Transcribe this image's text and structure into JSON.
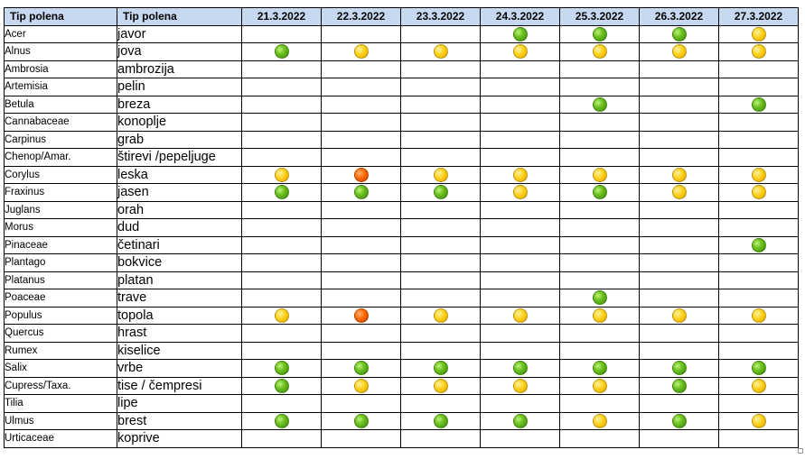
{
  "header": {
    "col1": "Tip polena",
    "col2": "Tip polena",
    "dates": [
      "21.3.2022",
      "22.3.2022",
      "23.3.2022",
      "24.3.2022",
      "25.3.2022",
      "26.3.2022",
      "27.3.2022"
    ]
  },
  "colors": {
    "green": "#6cc11f",
    "yellow": "#ffd11a",
    "orange": "#ff6a00"
  },
  "rows": [
    {
      "latin": "Acer",
      "local": "javor",
      "levels": [
        "",
        "",
        "",
        "green",
        "green",
        "green",
        "yellow"
      ]
    },
    {
      "latin": "Alnus",
      "local": "jova",
      "levels": [
        "green",
        "yellow",
        "yellow",
        "yellow",
        "yellow",
        "yellow",
        "yellow"
      ]
    },
    {
      "latin": "Ambrosia",
      "local": "ambrozija",
      "levels": [
        "",
        "",
        "",
        "",
        "",
        "",
        ""
      ]
    },
    {
      "latin": "Artemisia",
      "local": "pelin",
      "levels": [
        "",
        "",
        "",
        "",
        "",
        "",
        ""
      ]
    },
    {
      "latin": "Betula",
      "local": "breza",
      "levels": [
        "",
        "",
        "",
        "",
        "green",
        "",
        "green"
      ]
    },
    {
      "latin": "Cannabaceae",
      "local": "konoplje",
      "levels": [
        "",
        "",
        "",
        "",
        "",
        "",
        ""
      ]
    },
    {
      "latin": "Carpinus",
      "local": "grab",
      "levels": [
        "",
        "",
        "",
        "",
        "",
        "",
        ""
      ]
    },
    {
      "latin": "Chenop/Amar.",
      "local": "štirevi /pepeljuge",
      "levels": [
        "",
        "",
        "",
        "",
        "",
        "",
        ""
      ]
    },
    {
      "latin": "Corylus",
      "local": "leska",
      "levels": [
        "yellow",
        "orange",
        "yellow",
        "yellow",
        "yellow",
        "yellow",
        "yellow"
      ]
    },
    {
      "latin": "Fraxinus",
      "local": "jasen",
      "levels": [
        "green",
        "green",
        "green",
        "yellow",
        "green",
        "yellow",
        "yellow"
      ]
    },
    {
      "latin": "Juglans",
      "local": "orah",
      "levels": [
        "",
        "",
        "",
        "",
        "",
        "",
        ""
      ]
    },
    {
      "latin": "Morus",
      "local": "dud",
      "levels": [
        "",
        "",
        "",
        "",
        "",
        "",
        ""
      ]
    },
    {
      "latin": "Pinaceae",
      "local": "četinari",
      "levels": [
        "",
        "",
        "",
        "",
        "",
        "",
        "green"
      ]
    },
    {
      "latin": "Plantago",
      "local": "bokvice",
      "levels": [
        "",
        "",
        "",
        "",
        "",
        "",
        ""
      ]
    },
    {
      "latin": "Platanus",
      "local": "platan",
      "levels": [
        "",
        "",
        "",
        "",
        "",
        "",
        ""
      ]
    },
    {
      "latin": "Poaceae",
      "local": "trave",
      "levels": [
        "",
        "",
        "",
        "",
        "green",
        "",
        ""
      ]
    },
    {
      "latin": "Populus",
      "local": "topola",
      "levels": [
        "yellow",
        "orange",
        "yellow",
        "yellow",
        "yellow",
        "yellow",
        "yellow"
      ]
    },
    {
      "latin": "Quercus",
      "local": "hrast",
      "levels": [
        "",
        "",
        "",
        "",
        "",
        "",
        ""
      ]
    },
    {
      "latin": "Rumex",
      "local": "kiselice",
      "levels": [
        "",
        "",
        "",
        "",
        "",
        "",
        ""
      ]
    },
    {
      "latin": "Salix",
      "local": "vrbe",
      "levels": [
        "green",
        "green",
        "green",
        "green",
        "green",
        "green",
        "green"
      ]
    },
    {
      "latin": "Cupress/Taxa.",
      "local": "tise / čempresi",
      "levels": [
        "green",
        "yellow",
        "yellow",
        "yellow",
        "yellow",
        "green",
        "yellow"
      ]
    },
    {
      "latin": "Tilia",
      "local": "lipe",
      "levels": [
        "",
        "",
        "",
        "",
        "",
        "",
        ""
      ]
    },
    {
      "latin": "Ulmus",
      "local": "brest",
      "levels": [
        "green",
        "green",
        "green",
        "green",
        "yellow",
        "green",
        "yellow"
      ]
    },
    {
      "latin": "Urticaceae",
      "local": "koprive",
      "levels": [
        "",
        "",
        "",
        "",
        "",
        "",
        ""
      ]
    }
  ]
}
